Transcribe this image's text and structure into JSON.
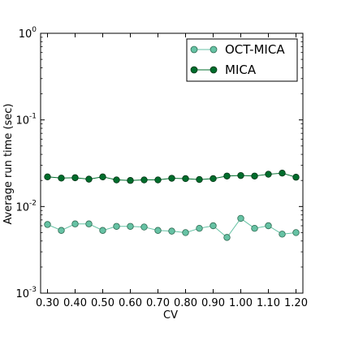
{
  "chart_data": {
    "type": "line",
    "xlabel": "CV",
    "ylabel": "Average run time (sec)",
    "xlim": [
      0.275,
      1.225
    ],
    "ylim": [
      0.001,
      1
    ],
    "yscale": "log",
    "x_ticks": [
      0.3,
      0.4,
      0.5,
      0.6,
      0.7,
      0.8,
      0.9,
      1.0,
      1.1,
      1.2
    ],
    "x_tick_labels": [
      "0.30",
      "0.40",
      "0.50",
      "0.60",
      "0.70",
      "0.80",
      "0.90",
      "1.00",
      "1.10",
      "1.20"
    ],
    "y_ticks": [
      0.001,
      0.01,
      0.1,
      1
    ],
    "y_tick_labels": [
      {
        "base": "10",
        "exp": "-3"
      },
      {
        "base": "10",
        "exp": "-2"
      },
      {
        "base": "10",
        "exp": "-1"
      },
      {
        "base": "10",
        "exp": "0"
      }
    ],
    "x": [
      0.3,
      0.35,
      0.4,
      0.45,
      0.5,
      0.55,
      0.6,
      0.65,
      0.7,
      0.75,
      0.8,
      0.85,
      0.9,
      0.95,
      1.0,
      1.05,
      1.1,
      1.15,
      1.2
    ],
    "series": [
      {
        "name": "OCT-MICA",
        "color": "#66c2a4",
        "edge_color": "#2e6b52",
        "values": [
          0.0062,
          0.0053,
          0.0063,
          0.0063,
          0.0053,
          0.0059,
          0.0059,
          0.0058,
          0.0053,
          0.0052,
          0.005,
          0.0056,
          0.006,
          0.0044,
          0.0073,
          0.0056,
          0.006,
          0.0048,
          0.005
        ]
      },
      {
        "name": "MICA",
        "color": "#006d2c",
        "edge_color": "#003314",
        "values": [
          0.022,
          0.0213,
          0.0215,
          0.0207,
          0.022,
          0.0203,
          0.02,
          0.0203,
          0.0203,
          0.0212,
          0.021,
          0.0205,
          0.021,
          0.0225,
          0.0228,
          0.0225,
          0.0236,
          0.0243,
          0.0218
        ]
      }
    ],
    "legend": "top-right",
    "grid": false
  }
}
